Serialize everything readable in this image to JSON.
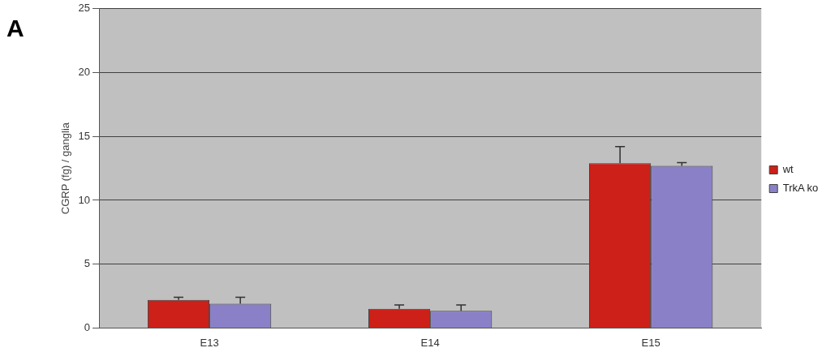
{
  "chart_data": {
    "type": "bar",
    "ylabel": "CGRP (fg) / ganglia",
    "annotations": [
      "A"
    ],
    "categories": [
      "E13",
      "E14",
      "E15"
    ],
    "series": [
      {
        "name": "wt",
        "color": "#cc2018",
        "values": [
          2.2,
          1.5,
          12.9
        ],
        "errors": [
          [
            2.2,
            2.4
          ],
          [
            1.5,
            1.8
          ],
          [
            12.9,
            14.2
          ]
        ]
      },
      {
        "name": "TrkA ko",
        "color": "#8a80c8",
        "values": [
          1.9,
          1.35,
          12.7
        ],
        "errors": [
          [
            1.9,
            2.4
          ],
          [
            1.35,
            1.8
          ],
          [
            12.7,
            12.95
          ]
        ]
      }
    ],
    "ylim": [
      0,
      25
    ],
    "yticks": [
      0,
      5,
      10,
      15,
      20,
      25
    ],
    "grid": "y",
    "legend": "right"
  }
}
